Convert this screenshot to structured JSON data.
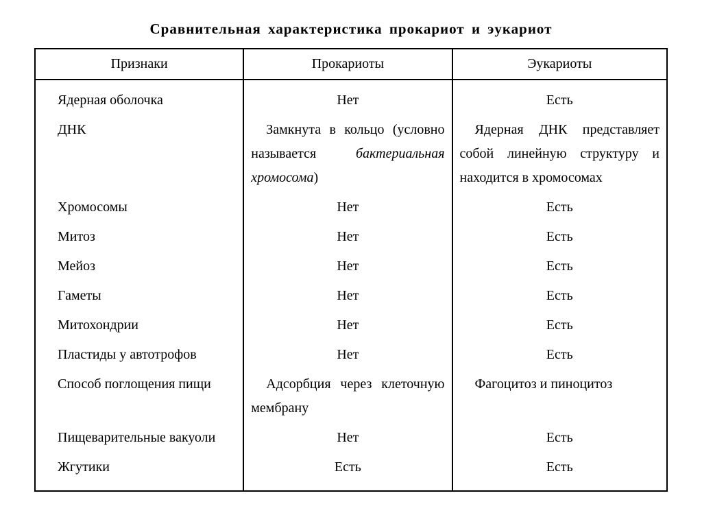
{
  "title": "Сравнительная характеристика прокариот и эукариот",
  "table": {
    "columns": [
      "Признаки",
      "Прокариоты",
      "Эукариоты"
    ],
    "rows": [
      {
        "feature": "Ядерная оболочка",
        "feature_indent": true,
        "prokaryotes": "Нет",
        "eukaryotes": "Есть"
      },
      {
        "feature": "ДНК",
        "feature_indent": true,
        "prokaryotes_html": "Замкнута в кольцо (условно называется <span class='italic'>бак­териальная хромосома</span>)",
        "prokaryotes_justify": true,
        "eukaryotes": "Ядерная ДНК пред­ставляет собой линей­ную структуру и нахо­дится в хромосомах",
        "eukaryotes_justify": true
      },
      {
        "feature": "Хромосомы",
        "feature_indent": true,
        "prokaryotes": "Нет",
        "eukaryotes": "Есть"
      },
      {
        "feature": "Митоз",
        "feature_indent": true,
        "prokaryotes": "Нет",
        "eukaryotes": "Есть"
      },
      {
        "feature": "Мейоз",
        "feature_indent": true,
        "prokaryotes": "Нет",
        "eukaryotes": "Есть"
      },
      {
        "feature": "Гаметы",
        "feature_indent": true,
        "prokaryotes": "Нет",
        "eukaryotes": "Есть"
      },
      {
        "feature": "Митохондрии",
        "feature_indent": true,
        "prokaryotes": "Нет",
        "eukaryotes": "Есть"
      },
      {
        "feature": "Пластиды у автотро­фов",
        "feature_indent": true,
        "feature_multiline": true,
        "prokaryotes": "Нет",
        "prokaryotes_align_bottom": true,
        "eukaryotes": "Есть",
        "eukaryotes_align_bottom": true
      },
      {
        "feature": "Способ поглощения пищи",
        "feature_indent": true,
        "feature_multiline": true,
        "prokaryotes": "Адсорбция через кле­точную мембрану",
        "prokaryotes_justify": true,
        "eukaryotes": "Фагоцитоз и пино­цитоз",
        "eukaryotes_justify": true
      },
      {
        "feature": "Пищеварительные ва­куоли",
        "feature_indent": true,
        "feature_multiline": true,
        "prokaryotes": "Нет",
        "prokaryotes_align_bottom": true,
        "eukaryotes": "Есть",
        "eukaryotes_align_bottom": true
      },
      {
        "feature": "Жгутики",
        "feature_indent": true,
        "prokaryotes": "Есть",
        "eukaryotes": "Есть"
      }
    ],
    "styling": {
      "border_color": "#000000",
      "border_width_outer": 2,
      "border_width_inner": 2,
      "background_color": "#ffffff",
      "text_color": "#000000",
      "font_family": "Georgia serif",
      "header_fontsize": 20,
      "body_fontsize": 20,
      "title_fontsize": 21,
      "line_height": 1.75
    }
  }
}
